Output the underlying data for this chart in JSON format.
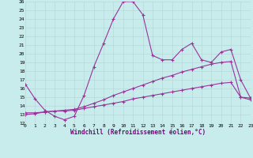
{
  "xlabel": "Windchill (Refroidissement éolien,°C)",
  "background_color": "#c8ecec",
  "grid_color": "#b8d8d8",
  "line_color": "#993399",
  "xlim_min": 0,
  "xlim_max": 23,
  "ylim_min": 12,
  "ylim_max": 26,
  "yticks": [
    12,
    13,
    14,
    15,
    16,
    17,
    18,
    19,
    20,
    21,
    22,
    23,
    24,
    25,
    26
  ],
  "xticks": [
    0,
    1,
    2,
    3,
    4,
    5,
    6,
    7,
    8,
    9,
    10,
    11,
    12,
    13,
    14,
    15,
    16,
    17,
    18,
    19,
    20,
    21,
    22,
    23
  ],
  "curve1_x": [
    0,
    1,
    2,
    3,
    4,
    5,
    6,
    7,
    8,
    9,
    10,
    11,
    12,
    13,
    14,
    15,
    16,
    17,
    18,
    19,
    20,
    21,
    22,
    23
  ],
  "curve1_y": [
    16.5,
    14.8,
    13.5,
    12.8,
    12.4,
    12.8,
    15.2,
    18.5,
    21.2,
    24.0,
    26.0,
    26.0,
    24.5,
    19.8,
    19.3,
    19.3,
    20.5,
    21.2,
    19.3,
    19.0,
    20.2,
    20.5,
    17.0,
    14.9
  ],
  "curve2_x": [
    0,
    1,
    2,
    3,
    4,
    5,
    6,
    7,
    8,
    9,
    10,
    11,
    12,
    13,
    14,
    15,
    16,
    17,
    18,
    19,
    20,
    21,
    22,
    23
  ],
  "curve2_y": [
    13.0,
    13.1,
    13.3,
    13.4,
    13.5,
    13.6,
    13.9,
    14.3,
    14.7,
    15.2,
    15.6,
    16.0,
    16.4,
    16.8,
    17.2,
    17.5,
    17.9,
    18.2,
    18.5,
    18.8,
    19.0,
    19.1,
    15.0,
    14.9
  ],
  "curve3_x": [
    0,
    1,
    2,
    3,
    4,
    5,
    6,
    7,
    8,
    9,
    10,
    11,
    12,
    13,
    14,
    15,
    16,
    17,
    18,
    19,
    20,
    21,
    22,
    23
  ],
  "curve3_y": [
    13.2,
    13.2,
    13.3,
    13.4,
    13.4,
    13.5,
    13.7,
    13.9,
    14.1,
    14.3,
    14.5,
    14.8,
    15.0,
    15.2,
    15.4,
    15.6,
    15.8,
    16.0,
    16.2,
    16.4,
    16.6,
    16.7,
    15.0,
    14.7
  ]
}
